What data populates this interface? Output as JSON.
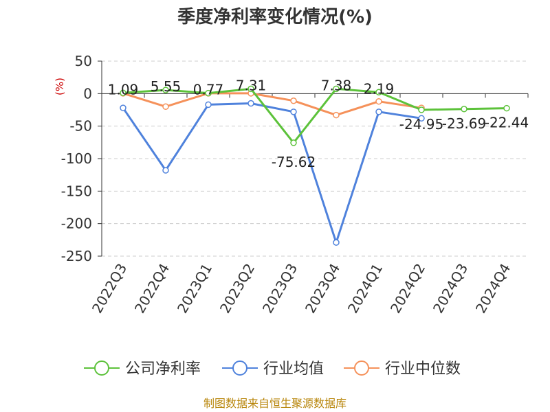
{
  "chart_data": {
    "type": "line",
    "title": "季度净利率变化情况(%)",
    "unit_label": "(%)",
    "categories": [
      "2022Q3",
      "2022Q4",
      "2023Q1",
      "2023Q2",
      "2023Q3",
      "2023Q4",
      "2024Q1",
      "2024Q2",
      "2024Q3",
      "2024Q4"
    ],
    "ylim": [
      -250,
      50
    ],
    "yticks": [
      50,
      0,
      -50,
      -100,
      -150,
      -200,
      -250
    ],
    "grid": true,
    "legend_position": "bottom",
    "series": [
      {
        "name": "公司净利率",
        "color": "#5cc23a",
        "values": [
          1.09,
          5.55,
          0.77,
          7.31,
          -75.62,
          7.38,
          2.19,
          -24.95,
          -23.69,
          -22.44
        ],
        "labels": [
          "1.09",
          "5.55",
          "0.77",
          "7.31",
          "-75.62",
          "7.38",
          "2.19",
          "-24.95",
          "-23.69",
          "-22.44"
        ]
      },
      {
        "name": "行业均值",
        "color": "#4f82dc",
        "values": [
          -22,
          -118,
          -17,
          -15,
          -28,
          -229,
          -28,
          -38,
          null,
          null
        ]
      },
      {
        "name": "行业中位数",
        "color": "#f5915a",
        "values": [
          0.5,
          -20,
          0.5,
          0.5,
          -11,
          -33,
          -12,
          -22,
          null,
          null
        ]
      }
    ]
  },
  "footer": {
    "source": "制图数据来自恒生聚源数据库"
  }
}
